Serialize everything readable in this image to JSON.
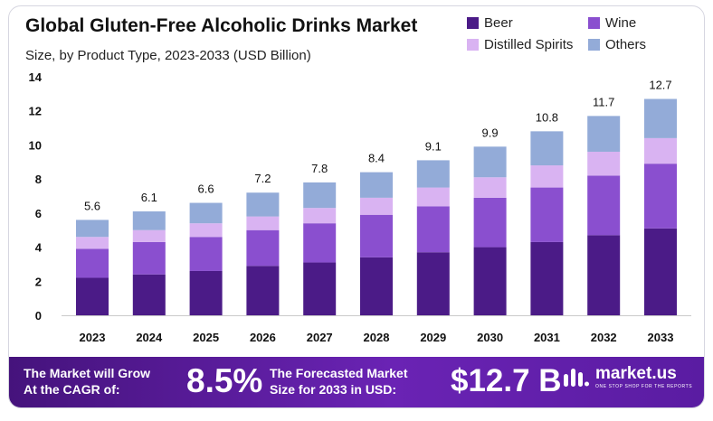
{
  "title": "Global Gluten-Free Alcoholic Drinks Market",
  "subtitle": "Size, by Product Type, 2023-2033 (USD Billion)",
  "legend": {
    "beer": "Beer",
    "wine": "Wine",
    "spirits": "Distilled Spirits",
    "others": "Others"
  },
  "colors": {
    "beer": "#4b1b87",
    "wine": "#8a4fcf",
    "spirits": "#d9b3f2",
    "others": "#93abd8",
    "footer": "#5a1ca2"
  },
  "chart_data": {
    "type": "bar",
    "stacked": true,
    "title": "Global Gluten-Free Alcoholic Drinks Market",
    "subtitle": "Size, by Product Type, 2023-2033 (USD Billion)",
    "categories": [
      "2023",
      "2024",
      "2025",
      "2026",
      "2027",
      "2028",
      "2029",
      "2030",
      "2031",
      "2032",
      "2033"
    ],
    "series": [
      {
        "name": "Beer",
        "values": [
          2.2,
          2.4,
          2.6,
          2.9,
          3.1,
          3.4,
          3.7,
          4.0,
          4.3,
          4.7,
          5.1
        ]
      },
      {
        "name": "Wine",
        "values": [
          1.7,
          1.9,
          2.0,
          2.1,
          2.3,
          2.5,
          2.7,
          2.9,
          3.2,
          3.5,
          3.8
        ]
      },
      {
        "name": "Distilled Spirits",
        "values": [
          0.7,
          0.7,
          0.8,
          0.8,
          0.9,
          1.0,
          1.1,
          1.2,
          1.3,
          1.4,
          1.5
        ]
      },
      {
        "name": "Others",
        "values": [
          1.0,
          1.1,
          1.2,
          1.4,
          1.5,
          1.5,
          1.6,
          1.8,
          2.0,
          2.1,
          2.3
        ]
      }
    ],
    "totals": [
      "5.6",
      "6.1",
      "6.6",
      "7.2",
      "7.8",
      "8.4",
      "9.1",
      "9.9",
      "10.8",
      "11.7",
      "12.7"
    ],
    "yticks": [
      "0",
      "2",
      "4",
      "6",
      "8",
      "10",
      "12",
      "14"
    ],
    "ylim": [
      0,
      14
    ],
    "grid": false,
    "legend_position": "top-right"
  },
  "footer": {
    "grow_line1": "The Market will Grow",
    "grow_line2": "At the CAGR of:",
    "cagr": "8.5%",
    "forecast_line1": "The Forecasted Market",
    "forecast_line2": "Size for 2033 in USD:",
    "value": "$12.7 B",
    "brand": "market.us",
    "tagline": "ONE STOP SHOP FOR THE REPORTS"
  }
}
